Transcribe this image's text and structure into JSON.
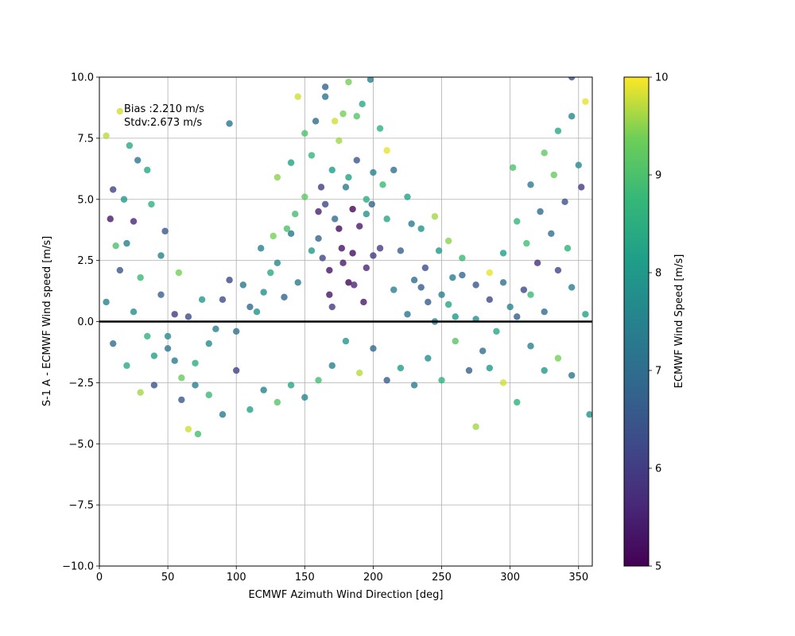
{
  "chart_data": {
    "type": "scatter",
    "xlabel": "ECMWF Azimuth Wind Direction [deg]",
    "ylabel": "S-1 A - ECMWF Wind speed [m/s]",
    "xlim": [
      0,
      360
    ],
    "ylim": [
      -10,
      10
    ],
    "x_ticks": [
      0,
      50,
      100,
      150,
      200,
      250,
      300,
      350
    ],
    "y_ticks": [
      -10.0,
      -7.5,
      -5.0,
      -2.5,
      0.0,
      2.5,
      5.0,
      7.5,
      10.0
    ],
    "x_tick_labels": [
      "0",
      "50",
      "100",
      "150",
      "200",
      "250",
      "300",
      "350"
    ],
    "y_tick_labels": [
      "−10.0",
      "−7.5",
      "−5.0",
      "−2.5",
      "0.0",
      "2.5",
      "5.0",
      "7.5",
      "10.0"
    ],
    "grid": true,
    "reference_line_y": 0,
    "annotation": {
      "bias": "Bias :2.210 m/s",
      "stdv": "Stdv:2.673 m/s"
    },
    "colorbar": {
      "label": "ECMWF Wind Speed [m/s]",
      "range": [
        5,
        10
      ],
      "ticks": [
        5,
        6,
        7,
        8,
        9,
        10
      ],
      "tick_labels": [
        "5",
        "6",
        "7",
        "8",
        "9",
        "10"
      ],
      "colormap": "viridis"
    },
    "point_color_variable": "ECMWF Wind Speed [m/s]",
    "point_summary": "Dense cloud of points centered near 160-200 deg with positive bias (up to ~10 m/s); smaller clusters near 0-60 deg and 300-360 deg; most points between -4 and 8 m/s",
    "points": [
      [
        170,
        6.2,
        8.1
      ],
      [
        180,
        5.5,
        7.3
      ],
      [
        165,
        4.8,
        6.2
      ],
      [
        190,
        3.9,
        5.4
      ],
      [
        175,
        7.4,
        9.6
      ],
      [
        155,
        6.8,
        8.7
      ],
      [
        200,
        6.1,
        7.5
      ],
      [
        185,
        2.8,
        5.2
      ],
      [
        160,
        3.4,
        6.8
      ],
      [
        195,
        4.4,
        7.9
      ],
      [
        150,
        5.1,
        9.2
      ],
      [
        210,
        4.2,
        8.3
      ],
      [
        172,
        8.2,
        9.8
      ],
      [
        182,
        1.6,
        5.1
      ],
      [
        168,
        2.1,
        5.3
      ],
      [
        140,
        3.6,
        7.2
      ],
      [
        220,
        2.9,
        6.7
      ],
      [
        130,
        2.4,
        7.6
      ],
      [
        230,
        1.7,
        7.0
      ],
      [
        120,
        1.2,
        7.8
      ],
      [
        240,
        0.8,
        6.6
      ],
      [
        110,
        0.6,
        6.9
      ],
      [
        250,
        1.1,
        7.4
      ],
      [
        260,
        0.2,
        8.0
      ],
      [
        100,
        -0.4,
        7.1
      ],
      [
        90,
        0.9,
        6.3
      ],
      [
        80,
        -0.9,
        7.7
      ],
      [
        70,
        -1.7,
        8.5
      ],
      [
        60,
        -2.3,
        9.3
      ],
      [
        50,
        -1.1,
        7.2
      ],
      [
        40,
        -2.6,
        6.4
      ],
      [
        30,
        1.8,
        8.8
      ],
      [
        20,
        3.2,
        7.4
      ],
      [
        10,
        5.4,
        6.1
      ],
      [
        5,
        7.6,
        9.7
      ],
      [
        15,
        8.6,
        9.8
      ],
      [
        25,
        4.1,
        5.6
      ],
      [
        35,
        6.2,
        8.3
      ],
      [
        45,
        2.7,
        7.5
      ],
      [
        55,
        0.3,
        6.0
      ],
      [
        65,
        -4.4,
        9.8
      ],
      [
        72,
        -4.6,
        8.9
      ],
      [
        95,
        8.1,
        7.2
      ],
      [
        145,
        9.2,
        9.8
      ],
      [
        165,
        9.6,
        6.8
      ],
      [
        198,
        9.9,
        7.4
      ],
      [
        178,
        8.5,
        9.4
      ],
      [
        188,
        8.4,
        9.1
      ],
      [
        192,
        8.9,
        8.4
      ],
      [
        158,
        8.2,
        7.0
      ],
      [
        205,
        7.9,
        8.6
      ],
      [
        215,
        6.2,
        7.1
      ],
      [
        225,
        5.1,
        8.2
      ],
      [
        235,
        3.8,
        7.9
      ],
      [
        245,
        4.3,
        9.6
      ],
      [
        255,
        3.3,
        9.5
      ],
      [
        265,
        2.6,
        8.8
      ],
      [
        275,
        1.5,
        6.5
      ],
      [
        285,
        2.0,
        9.9
      ],
      [
        295,
        2.8,
        8.1
      ],
      [
        305,
        4.1,
        8.7
      ],
      [
        315,
        5.6,
        7.3
      ],
      [
        325,
        6.9,
        9.2
      ],
      [
        335,
        7.8,
        8.4
      ],
      [
        345,
        8.4,
        7.6
      ],
      [
        355,
        9.0,
        9.9
      ],
      [
        350,
        6.4,
        7.7
      ],
      [
        340,
        4.9,
        6.4
      ],
      [
        330,
        3.6,
        7.1
      ],
      [
        320,
        2.4,
        5.8
      ],
      [
        310,
        1.3,
        6.2
      ],
      [
        300,
        0.6,
        7.5
      ],
      [
        290,
        -0.4,
        8.3
      ],
      [
        280,
        -1.2,
        7.0
      ],
      [
        270,
        -2.0,
        6.7
      ],
      [
        260,
        -0.8,
        9.1
      ],
      [
        250,
        -2.4,
        8.6
      ],
      [
        240,
        -1.5,
        7.8
      ],
      [
        230,
        -2.6,
        7.3
      ],
      [
        220,
        -1.9,
        8.1
      ],
      [
        210,
        -2.4,
        6.6
      ],
      [
        200,
        -1.1,
        6.9
      ],
      [
        190,
        -2.1,
        9.7
      ],
      [
        180,
        -0.8,
        8.0
      ],
      [
        170,
        -1.8,
        7.4
      ],
      [
        160,
        -2.4,
        8.9
      ],
      [
        150,
        -3.1,
        7.6
      ],
      [
        140,
        -2.6,
        8.3
      ],
      [
        130,
        -3.3,
        9.1
      ],
      [
        120,
        -2.8,
        7.5
      ],
      [
        110,
        -3.6,
        8.2
      ],
      [
        100,
        -2.0,
        6.1
      ],
      [
        90,
        -3.8,
        7.3
      ],
      [
        80,
        -3.0,
        8.8
      ],
      [
        70,
        -2.6,
        7.4
      ],
      [
        60,
        -3.2,
        6.5
      ],
      [
        50,
        -0.6,
        7.7
      ],
      [
        40,
        -1.4,
        8.2
      ],
      [
        30,
        -2.9,
        9.6
      ],
      [
        20,
        -1.8,
        8.4
      ],
      [
        10,
        -0.9,
        7.0
      ],
      [
        358,
        -3.8,
        7.9
      ],
      [
        345,
        -2.2,
        7.2
      ],
      [
        335,
        -1.5,
        9.4
      ],
      [
        325,
        -2.0,
        8.0
      ],
      [
        315,
        -1.0,
        7.5
      ],
      [
        305,
        -3.3,
        8.6
      ],
      [
        295,
        -2.5,
        9.8
      ],
      [
        285,
        -1.9,
        8.0
      ],
      [
        275,
        -4.3,
        9.6
      ],
      [
        175,
        3.8,
        5.2
      ],
      [
        185,
        4.6,
        5.1
      ],
      [
        178,
        2.4,
        5.4
      ],
      [
        168,
        1.1,
        5.3
      ],
      [
        195,
        2.2,
        5.6
      ],
      [
        205,
        3.0,
        6.0
      ],
      [
        162,
        5.5,
        6.0
      ],
      [
        188,
        6.6,
        6.5
      ],
      [
        172,
        4.2,
        7.0
      ],
      [
        182,
        5.9,
        8.2
      ],
      [
        195,
        5.0,
        8.5
      ],
      [
        155,
        2.9,
        8.0
      ],
      [
        145,
        1.6,
        7.3
      ],
      [
        135,
        1.0,
        6.8
      ],
      [
        125,
        2.0,
        8.4
      ],
      [
        115,
        0.4,
        7.9
      ],
      [
        105,
        1.5,
        7.2
      ],
      [
        215,
        1.3,
        7.5
      ],
      [
        225,
        0.3,
        7.2
      ],
      [
        235,
        1.4,
        6.6
      ],
      [
        245,
        0.0,
        7.4
      ],
      [
        255,
        0.7,
        8.3
      ],
      [
        265,
        1.9,
        6.9
      ],
      [
        275,
        0.1,
        7.8
      ],
      [
        285,
        0.9,
        6.2
      ],
      [
        295,
        1.6,
        7.1
      ],
      [
        305,
        0.2,
        6.6
      ],
      [
        315,
        1.1,
        8.8
      ],
      [
        325,
        0.4,
        7.0
      ],
      [
        335,
        2.1,
        6.2
      ],
      [
        345,
        1.4,
        7.4
      ],
      [
        355,
        0.3,
        8.2
      ],
      [
        5,
        0.8,
        7.5
      ],
      [
        15,
        2.1,
        6.5
      ],
      [
        25,
        0.4,
        7.8
      ],
      [
        35,
        -0.6,
        8.6
      ],
      [
        45,
        1.1,
        6.7
      ],
      [
        55,
        -1.6,
        7.3
      ],
      [
        65,
        0.2,
        6.3
      ],
      [
        75,
        0.9,
        8.0
      ],
      [
        85,
        -0.3,
        7.4
      ],
      [
        95,
        1.7,
        6.2
      ],
      [
        8,
        4.2,
        5.4
      ],
      [
        18,
        5.0,
        8.0
      ],
      [
        28,
        6.6,
        7.2
      ],
      [
        38,
        4.8,
        8.6
      ],
      [
        48,
        3.7,
        6.5
      ],
      [
        58,
        2.0,
        9.4
      ],
      [
        12,
        3.1,
        9.0
      ],
      [
        22,
        7.2,
        8.4
      ],
      [
        352,
        5.5,
        6.0
      ],
      [
        342,
        3.0,
        8.6
      ],
      [
        332,
        6.0,
        9.3
      ],
      [
        322,
        4.5,
        7.0
      ],
      [
        312,
        3.2,
        8.9
      ],
      [
        302,
        6.3,
        9.0
      ],
      [
        345,
        10.0,
        6.4
      ],
      [
        165,
        9.2,
        7.2
      ],
      [
        182,
        9.8,
        9.4
      ],
      [
        140,
        6.5,
        8.2
      ],
      [
        130,
        5.9,
        9.5
      ],
      [
        210,
        7.0,
        9.9
      ],
      [
        150,
        7.7,
        9.0
      ],
      [
        160,
        4.5,
        5.5
      ],
      [
        177,
        3.0,
        5.3
      ],
      [
        186,
        1.5,
        5.6
      ],
      [
        193,
        0.8,
        5.4
      ],
      [
        200,
        2.7,
        5.9
      ],
      [
        170,
        0.6,
        6.0
      ],
      [
        163,
        2.6,
        6.2
      ],
      [
        199,
        4.8,
        6.8
      ],
      [
        207,
        5.6,
        8.8
      ],
      [
        143,
        4.4,
        8.9
      ],
      [
        137,
        3.8,
        9.0
      ],
      [
        118,
        3.0,
        7.5
      ],
      [
        127,
        3.5,
        9.4
      ],
      [
        228,
        4.0,
        7.3
      ],
      [
        238,
        2.2,
        6.3
      ],
      [
        248,
        2.9,
        8.0
      ],
      [
        258,
        1.8,
        7.4
      ]
    ]
  }
}
